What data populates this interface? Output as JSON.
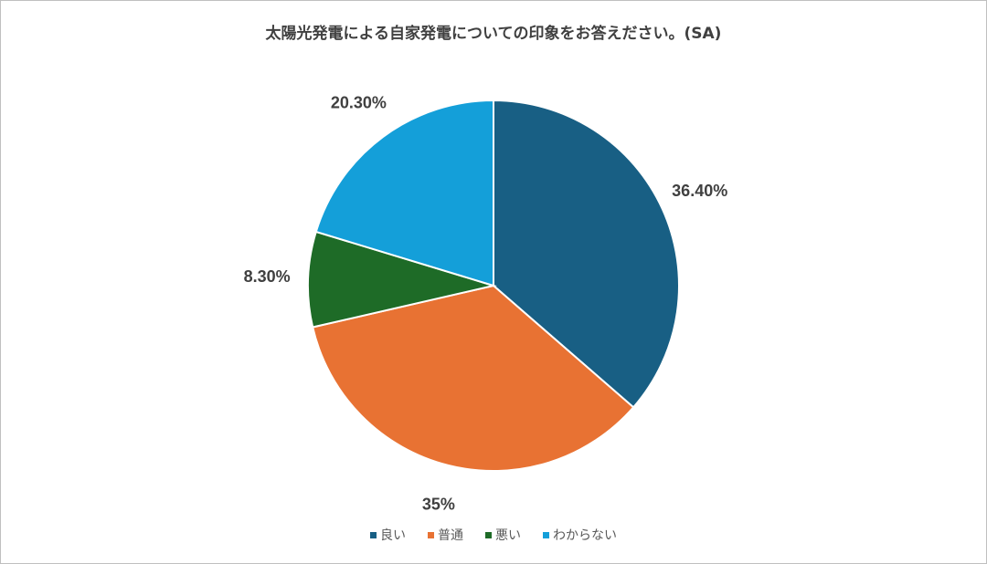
{
  "chart_data": {
    "type": "pie",
    "title": "太陽光発電による自家発電についての印象をお答えださい。(SA)",
    "categories": [
      "良い",
      "普通",
      "悪い",
      "わからない"
    ],
    "values": [
      36.4,
      35,
      8.3,
      20.3
    ],
    "value_labels": [
      "36.40%",
      "35%",
      "8.30%",
      "20.30%"
    ],
    "colors": [
      "#185f84",
      "#e87233",
      "#1e6b27",
      "#149fd9"
    ],
    "legend": "bottom"
  }
}
